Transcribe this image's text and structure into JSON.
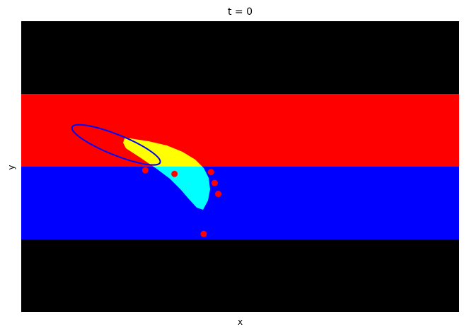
{
  "chart_data": {
    "type": "heatmap",
    "title": "t = 0",
    "xlabel": "x",
    "ylabel": "y",
    "xlim": [
      0,
      12
    ],
    "ylim": [
      0,
      8
    ],
    "grid": false,
    "ticks_visible": false,
    "bands": [
      {
        "y0": 6,
        "y1": 8,
        "color": "#000000"
      },
      {
        "y0": 4,
        "y1": 6,
        "color": "#ff0000"
      },
      {
        "y0": 2,
        "y1": 4,
        "color": "#0000ff"
      },
      {
        "y0": 0,
        "y1": 2,
        "color": "#000000"
      }
    ],
    "shape_colors": {
      "upper": "#ffff00",
      "lower": "#00ffff",
      "outline": "#0000ff"
    },
    "ellipse": {
      "cx": 2.6,
      "cy": 4.6,
      "rx": 1.3,
      "ry": 0.28,
      "angle_deg": -22
    },
    "points": [
      {
        "x": 3.4,
        "y": 3.9
      },
      {
        "x": 4.2,
        "y": 3.8
      },
      {
        "x": 5.2,
        "y": 3.85
      },
      {
        "x": 5.3,
        "y": 3.55
      },
      {
        "x": 5.4,
        "y": 3.25
      },
      {
        "x": 5.0,
        "y": 2.15
      }
    ],
    "point_color": "#ff0000"
  }
}
